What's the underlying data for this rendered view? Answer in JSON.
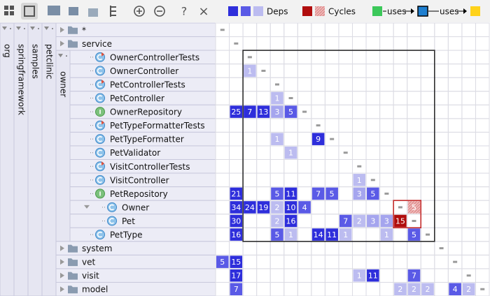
{
  "toolbar": {
    "help": "?",
    "close": "×"
  },
  "legend": {
    "deps": {
      "label": "Deps",
      "colors": [
        "#2e2edb",
        "#5a5ae6",
        "#bcbcf0"
      ]
    },
    "cycles": {
      "label": "Cycles",
      "colors": [
        "#b00d0d",
        "#e6a3a3"
      ]
    },
    "uses": [
      {
        "label": "uses"
      },
      {
        "label": "uses"
      }
    ],
    "uses_colors": [
      "#3cc85a",
      "#1f7fd0",
      "#ffd21a"
    ]
  },
  "packages": [
    {
      "label": "org"
    },
    {
      "label": "springframework"
    },
    {
      "label": "samples"
    },
    {
      "label": "petclinic"
    },
    {
      "label": "owner"
    }
  ],
  "nested_marker": "*",
  "rows": [
    {
      "label": "*",
      "kind": "folder",
      "values": [
        null,
        null,
        null,
        null,
        null,
        null,
        null,
        null,
        null,
        null,
        null,
        null,
        null,
        null,
        null,
        null,
        null,
        null,
        null,
        null
      ],
      "colors": [
        null,
        null,
        null,
        null,
        null,
        null,
        null,
        null,
        null,
        null,
        null,
        null,
        null,
        null,
        null,
        null,
        null,
        null,
        null,
        null
      ]
    },
    {
      "label": "service",
      "kind": "folder",
      "values": [
        null,
        null,
        null,
        null,
        null,
        null,
        null,
        null,
        null,
        null,
        null,
        null,
        null,
        null,
        null,
        null,
        null,
        null,
        null,
        null
      ],
      "colors": [
        null,
        null,
        null,
        null,
        null,
        null,
        null,
        null,
        null,
        null,
        null,
        null,
        null,
        null,
        null,
        null,
        null,
        null,
        null,
        null
      ]
    },
    {
      "label": "OwnerControllerTests",
      "kind": "test",
      "values": [
        null,
        null,
        null,
        null,
        null,
        null,
        null,
        null,
        null,
        null,
        null,
        null,
        null,
        null,
        null,
        null,
        null,
        null,
        null,
        null
      ],
      "colors": [
        null,
        null,
        null,
        null,
        null,
        null,
        null,
        null,
        null,
        null,
        null,
        null,
        null,
        null,
        null,
        null,
        null,
        null,
        null,
        null
      ]
    },
    {
      "label": "OwnerController",
      "kind": "class",
      "values": [
        null,
        null,
        1,
        null,
        null,
        null,
        null,
        null,
        null,
        null,
        null,
        null,
        null,
        null,
        null,
        null,
        null,
        null,
        null,
        null
      ],
      "colors": [
        null,
        null,
        "#bcbcf0",
        null,
        null,
        null,
        null,
        null,
        null,
        null,
        null,
        null,
        null,
        null,
        null,
        null,
        null,
        null,
        null,
        null
      ]
    },
    {
      "label": "PetControllerTests",
      "kind": "test",
      "values": [
        null,
        null,
        null,
        null,
        null,
        null,
        null,
        null,
        null,
        null,
        null,
        null,
        null,
        null,
        null,
        null,
        null,
        null,
        null,
        null
      ],
      "colors": [
        null,
        null,
        null,
        null,
        null,
        null,
        null,
        null,
        null,
        null,
        null,
        null,
        null,
        null,
        null,
        null,
        null,
        null,
        null,
        null
      ]
    },
    {
      "label": "PetController",
      "kind": "class",
      "values": [
        null,
        null,
        null,
        null,
        1,
        null,
        null,
        null,
        null,
        null,
        null,
        null,
        null,
        null,
        null,
        null,
        null,
        null,
        null,
        null
      ],
      "colors": [
        null,
        null,
        null,
        null,
        "#bcbcf0",
        null,
        null,
        null,
        null,
        null,
        null,
        null,
        null,
        null,
        null,
        null,
        null,
        null,
        null,
        null
      ]
    },
    {
      "label": "OwnerRepository",
      "kind": "interface",
      "values": [
        null,
        25,
        7,
        13,
        3,
        5,
        null,
        null,
        null,
        null,
        null,
        null,
        null,
        null,
        null,
        null,
        null,
        null,
        null,
        null
      ],
      "colors": [
        null,
        "#2e2edb",
        "#2e2edb",
        "#2e2edb",
        "#a5a5ee",
        "#5a5ae6",
        null,
        null,
        null,
        null,
        null,
        null,
        null,
        null,
        null,
        null,
        null,
        null,
        null,
        null
      ]
    },
    {
      "label": "PetTypeFormatterTests",
      "kind": "test",
      "values": [
        null,
        null,
        null,
        null,
        null,
        null,
        null,
        null,
        null,
        null,
        null,
        null,
        null,
        null,
        null,
        null,
        null,
        null,
        null,
        null
      ],
      "colors": [
        null,
        null,
        null,
        null,
        null,
        null,
        null,
        null,
        null,
        null,
        null,
        null,
        null,
        null,
        null,
        null,
        null,
        null,
        null,
        null
      ]
    },
    {
      "label": "PetTypeFormatter",
      "kind": "class",
      "values": [
        null,
        null,
        null,
        null,
        1,
        null,
        null,
        9,
        null,
        null,
        null,
        null,
        null,
        null,
        null,
        null,
        null,
        null,
        null,
        null
      ],
      "colors": [
        null,
        null,
        null,
        null,
        "#bcbcf0",
        null,
        null,
        "#2e2edb",
        null,
        null,
        null,
        null,
        null,
        null,
        null,
        null,
        null,
        null,
        null,
        null
      ]
    },
    {
      "label": "PetValidator",
      "kind": "class",
      "values": [
        null,
        null,
        null,
        null,
        null,
        1,
        null,
        null,
        null,
        null,
        null,
        null,
        null,
        null,
        null,
        null,
        null,
        null,
        null,
        null
      ],
      "colors": [
        null,
        null,
        null,
        null,
        null,
        "#bcbcf0",
        null,
        null,
        null,
        null,
        null,
        null,
        null,
        null,
        null,
        null,
        null,
        null,
        null,
        null
      ]
    },
    {
      "label": "VisitControllerTests",
      "kind": "test",
      "values": [
        null,
        null,
        null,
        null,
        null,
        null,
        null,
        null,
        null,
        null,
        null,
        null,
        null,
        null,
        null,
        null,
        null,
        null,
        null,
        null
      ],
      "colors": [
        null,
        null,
        null,
        null,
        null,
        null,
        null,
        null,
        null,
        null,
        null,
        null,
        null,
        null,
        null,
        null,
        null,
        null,
        null,
        null
      ]
    },
    {
      "label": "VisitController",
      "kind": "class",
      "values": [
        null,
        null,
        null,
        null,
        null,
        null,
        null,
        null,
        null,
        null,
        1,
        null,
        null,
        null,
        null,
        null,
        null,
        null,
        null,
        null
      ],
      "colors": [
        null,
        null,
        null,
        null,
        null,
        null,
        null,
        null,
        null,
        null,
        "#bcbcf0",
        null,
        null,
        null,
        null,
        null,
        null,
        null,
        null,
        null
      ]
    },
    {
      "label": "PetRepository",
      "kind": "interface",
      "values": [
        null,
        21,
        null,
        null,
        5,
        11,
        null,
        7,
        5,
        null,
        3,
        5,
        null,
        null,
        null,
        null,
        null,
        null,
        null,
        null
      ],
      "colors": [
        null,
        "#2e2edb",
        null,
        null,
        "#5a5ae6",
        "#2e2edb",
        null,
        "#5a5ae6",
        "#5a5ae6",
        null,
        "#a5a5ee",
        "#5a5ae6",
        null,
        null,
        null,
        null,
        null,
        null,
        null,
        null
      ]
    },
    {
      "label": "Owner",
      "kind": "class",
      "values": [
        null,
        34,
        24,
        19,
        2,
        10,
        4,
        null,
        null,
        null,
        null,
        null,
        null,
        null,
        5,
        null,
        null,
        null,
        null,
        null
      ],
      "colors": [
        null,
        "#2e2edb",
        "#2e2edb",
        "#2e2edb",
        "#bcbcf0",
        "#2e2edb",
        "#5a5ae6",
        null,
        null,
        null,
        null,
        null,
        null,
        null,
        "#e6a3a3",
        null,
        null,
        null,
        null,
        null
      ]
    },
    {
      "label": "Pet",
      "kind": "class",
      "values": [
        null,
        30,
        null,
        null,
        2,
        16,
        null,
        null,
        null,
        7,
        2,
        3,
        3,
        15,
        null,
        null,
        null,
        null,
        null,
        null
      ],
      "colors": [
        null,
        "#2e2edb",
        null,
        null,
        "#bcbcf0",
        "#2e2edb",
        null,
        null,
        null,
        "#5a5ae6",
        "#bcbcf0",
        "#a5a5ee",
        "#a5a5ee",
        "#b00d0d",
        null,
        null,
        null,
        null,
        null,
        null
      ]
    },
    {
      "label": "PetType",
      "kind": "class",
      "values": [
        null,
        16,
        null,
        null,
        5,
        1,
        null,
        14,
        11,
        1,
        null,
        null,
        1,
        null,
        5,
        null,
        null,
        null,
        null,
        null
      ],
      "colors": [
        null,
        "#2e2edb",
        null,
        null,
        "#5a5ae6",
        "#bcbcf0",
        null,
        "#2e2edb",
        "#2e2edb",
        "#bcbcf0",
        null,
        null,
        "#bcbcf0",
        null,
        "#5a5ae6",
        null,
        null,
        null,
        null,
        null
      ]
    },
    {
      "label": "system",
      "kind": "folder",
      "values": [
        null,
        null,
        null,
        null,
        null,
        null,
        null,
        null,
        null,
        null,
        null,
        null,
        null,
        null,
        null,
        null,
        null,
        null,
        null,
        null
      ],
      "colors": [
        null,
        null,
        null,
        null,
        null,
        null,
        null,
        null,
        null,
        null,
        null,
        null,
        null,
        null,
        null,
        null,
        null,
        null,
        null,
        null
      ]
    },
    {
      "label": "vet",
      "kind": "folder",
      "values": [
        5,
        15,
        null,
        null,
        null,
        null,
        null,
        null,
        null,
        null,
        null,
        null,
        null,
        null,
        null,
        null,
        null,
        null,
        null,
        null
      ],
      "colors": [
        "#5a5ae6",
        "#2e2edb",
        null,
        null,
        null,
        null,
        null,
        null,
        null,
        null,
        null,
        null,
        null,
        null,
        null,
        null,
        null,
        null,
        null,
        null
      ]
    },
    {
      "label": "visit",
      "kind": "folder",
      "values": [
        null,
        17,
        null,
        null,
        null,
        null,
        null,
        null,
        null,
        null,
        1,
        11,
        null,
        null,
        7,
        null,
        null,
        null,
        null,
        null
      ],
      "colors": [
        null,
        "#2e2edb",
        null,
        null,
        null,
        null,
        null,
        null,
        null,
        null,
        "#bcbcf0",
        "#2e2edb",
        null,
        null,
        "#5a5ae6",
        null,
        null,
        null,
        null,
        null
      ]
    },
    {
      "label": "model",
      "kind": "folder",
      "values": [
        null,
        7,
        null,
        null,
        null,
        null,
        null,
        null,
        null,
        null,
        null,
        null,
        null,
        2,
        2,
        2,
        null,
        4,
        2,
        null
      ],
      "colors": [
        null,
        "#5a5ae6",
        null,
        null,
        null,
        null,
        null,
        null,
        null,
        null,
        null,
        null,
        null,
        "#bcbcf0",
        "#bcbcf0",
        "#bcbcf0",
        null,
        "#5a5ae6",
        "#bcbcf0",
        null
      ]
    }
  ]
}
